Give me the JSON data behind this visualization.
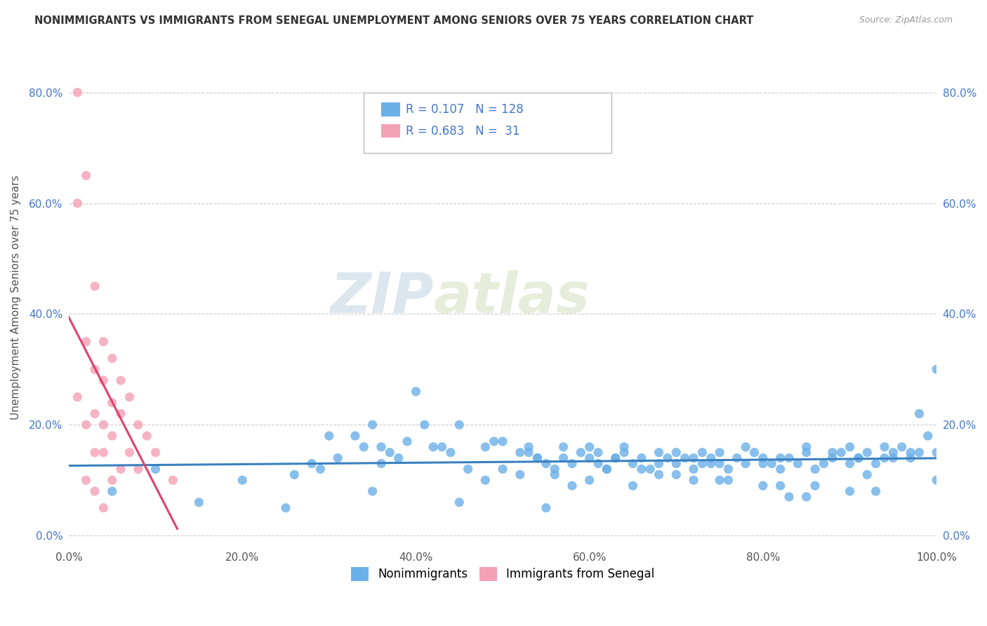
{
  "title": "NONIMMIGRANTS VS IMMIGRANTS FROM SENEGAL UNEMPLOYMENT AMONG SENIORS OVER 75 YEARS CORRELATION CHART",
  "source": "Source: ZipAtlas.com",
  "ylabel": "Unemployment Among Seniors over 75 years",
  "watermark_zip": "ZIP",
  "watermark_atlas": "atlas",
  "legend_label1": "Nonimmigrants",
  "legend_label2": "Immigrants from Senegal",
  "R1": 0.107,
  "N1": 128,
  "R2": 0.683,
  "N2": 31,
  "color1": "#6ab0e8",
  "color2": "#f4a0b5",
  "trendline1_color": "#3a80c0",
  "trendline2_color": "#e04070",
  "background_color": "#ffffff",
  "grid_color": "#cccccc",
  "title_color": "#333333",
  "source_color": "#999999",
  "legend_text_color": "#4477cc",
  "xlim": [
    0.0,
    1.0
  ],
  "ylim": [
    -0.02,
    0.88
  ],
  "x_ticks": [
    0.0,
    0.2,
    0.4,
    0.6,
    0.8,
    1.0
  ],
  "x_tick_labels": [
    "0.0%",
    "20.0%",
    "40.0%",
    "60.0%",
    "80.0%",
    "100.0%"
  ],
  "y_ticks": [
    0.0,
    0.2,
    0.4,
    0.6,
    0.8
  ],
  "y_tick_labels": [
    "0.0%",
    "20.0%",
    "40.0%",
    "60.0%",
    "80.0%"
  ],
  "nonimm_x": [
    0.3,
    0.35,
    0.38,
    0.4,
    0.42,
    0.45,
    0.48,
    0.5,
    0.52,
    0.54,
    0.55,
    0.56,
    0.57,
    0.58,
    0.59,
    0.6,
    0.61,
    0.62,
    0.63,
    0.64,
    0.65,
    0.66,
    0.67,
    0.68,
    0.69,
    0.7,
    0.71,
    0.72,
    0.73,
    0.74,
    0.75,
    0.76,
    0.77,
    0.78,
    0.79,
    0.8,
    0.81,
    0.82,
    0.83,
    0.84,
    0.85,
    0.86,
    0.87,
    0.88,
    0.89,
    0.9,
    0.91,
    0.92,
    0.93,
    0.94,
    0.95,
    0.96,
    0.97,
    0.98,
    0.99,
    1.0,
    0.33,
    0.36,
    0.41,
    0.43,
    0.49,
    0.26,
    0.28,
    0.29,
    0.31,
    0.34,
    0.37,
    0.39,
    0.53,
    0.57,
    0.61,
    0.64,
    0.68,
    0.72,
    0.75,
    0.78,
    0.82,
    0.85,
    0.88,
    0.91,
    0.94,
    0.97,
    1.0,
    0.6,
    0.7,
    0.8,
    0.9,
    0.95,
    0.98,
    0.53,
    0.63,
    0.73,
    0.83,
    0.93,
    0.65,
    0.75,
    0.85,
    0.55,
    0.45,
    0.35,
    0.25,
    0.15,
    0.05,
    0.48,
    0.58,
    0.68,
    0.5,
    0.6,
    0.7,
    0.8,
    0.9,
    1.0,
    0.52,
    0.62,
    0.72,
    0.82,
    0.92,
    0.66,
    0.76,
    0.86,
    0.56,
    0.46,
    0.36,
    0.2,
    0.1,
    0.44,
    0.54,
    0.74
  ],
  "nonimm_y": [
    0.18,
    0.2,
    0.14,
    0.26,
    0.16,
    0.2,
    0.16,
    0.17,
    0.15,
    0.14,
    0.13,
    0.12,
    0.14,
    0.13,
    0.15,
    0.14,
    0.13,
    0.12,
    0.14,
    0.15,
    0.13,
    0.14,
    0.12,
    0.13,
    0.14,
    0.13,
    0.14,
    0.12,
    0.13,
    0.14,
    0.13,
    0.12,
    0.14,
    0.13,
    0.15,
    0.14,
    0.13,
    0.12,
    0.14,
    0.13,
    0.15,
    0.12,
    0.13,
    0.14,
    0.15,
    0.13,
    0.14,
    0.15,
    0.13,
    0.14,
    0.15,
    0.16,
    0.14,
    0.22,
    0.18,
    0.3,
    0.18,
    0.16,
    0.2,
    0.16,
    0.17,
    0.11,
    0.13,
    0.12,
    0.14,
    0.16,
    0.15,
    0.17,
    0.15,
    0.16,
    0.15,
    0.16,
    0.15,
    0.14,
    0.15,
    0.16,
    0.14,
    0.16,
    0.15,
    0.14,
    0.16,
    0.15,
    0.15,
    0.16,
    0.15,
    0.13,
    0.16,
    0.14,
    0.15,
    0.16,
    0.14,
    0.15,
    0.07,
    0.08,
    0.09,
    0.1,
    0.07,
    0.05,
    0.06,
    0.08,
    0.05,
    0.06,
    0.08,
    0.1,
    0.09,
    0.11,
    0.12,
    0.1,
    0.11,
    0.09,
    0.08,
    0.1,
    0.11,
    0.12,
    0.1,
    0.09,
    0.11,
    0.12,
    0.1,
    0.09,
    0.11,
    0.12,
    0.13,
    0.1,
    0.12,
    0.15,
    0.14,
    0.13
  ],
  "imm_x": [
    0.01,
    0.01,
    0.01,
    0.02,
    0.02,
    0.02,
    0.02,
    0.03,
    0.03,
    0.03,
    0.03,
    0.03,
    0.04,
    0.04,
    0.04,
    0.04,
    0.04,
    0.05,
    0.05,
    0.05,
    0.05,
    0.06,
    0.06,
    0.06,
    0.07,
    0.07,
    0.08,
    0.08,
    0.09,
    0.1,
    0.12
  ],
  "imm_y": [
    0.8,
    0.6,
    0.25,
    0.65,
    0.35,
    0.2,
    0.1,
    0.45,
    0.3,
    0.22,
    0.15,
    0.08,
    0.35,
    0.28,
    0.2,
    0.15,
    0.05,
    0.32,
    0.24,
    0.18,
    0.1,
    0.28,
    0.22,
    0.12,
    0.25,
    0.15,
    0.2,
    0.12,
    0.18,
    0.15,
    0.1
  ]
}
